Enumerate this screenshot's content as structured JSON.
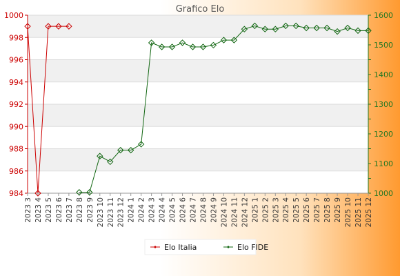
{
  "chart_data": {
    "type": "line",
    "title": "Grafico Elo",
    "categories": [
      "2023 3",
      "2023 4",
      "2023 5",
      "2023 6",
      "2023 7",
      "2023 8",
      "2023 9",
      "2023 10",
      "2023 11",
      "2023 12",
      "2024 1",
      "2024 2",
      "2024 3",
      "2024 4",
      "2024 5",
      "2024 6",
      "2024 7",
      "2024 8",
      "2024 9",
      "2024 10",
      "2024 11",
      "2024 12",
      "2025 1",
      "2025 2",
      "2025 3",
      "2025 4",
      "2025 5",
      "2025 6",
      "2025 7",
      "2025 8",
      "2025 9",
      "2025 10",
      "2025 11",
      "2025 12"
    ],
    "y_left": {
      "range": [
        984,
        1000
      ],
      "ticks": [
        "984",
        "986",
        "988",
        "990",
        "992",
        "994",
        "996",
        "998",
        "1000"
      ]
    },
    "y_right": {
      "range": [
        1000,
        1600
      ],
      "ticks": [
        "1000",
        "1100",
        "1200",
        "1300",
        "1400",
        "1500",
        "1600"
      ]
    },
    "grid": true,
    "legend_position": "bottom-center",
    "series": [
      {
        "name": "Elo Italia",
        "axis": "left",
        "color": "#cc0000",
        "values": [
          999,
          984,
          999,
          999,
          999,
          null,
          null,
          null,
          null,
          null,
          null,
          null,
          null,
          null,
          null,
          null,
          null,
          null,
          null,
          null,
          null,
          null,
          null,
          null,
          null,
          null,
          null,
          null,
          null,
          null,
          null,
          null,
          null,
          null
        ]
      },
      {
        "name": "Elo FIDE",
        "axis": "right",
        "color": "#116611",
        "values": [
          null,
          null,
          null,
          null,
          null,
          1003,
          1003,
          1125,
          1106,
          1145,
          1145,
          1165,
          1507,
          1493,
          1493,
          1507,
          1493,
          1493,
          1499,
          1516,
          1516,
          1553,
          1564,
          1553,
          1553,
          1564,
          1564,
          1557,
          1557,
          1557,
          1545,
          1557,
          1548,
          1548
        ]
      }
    ]
  }
}
